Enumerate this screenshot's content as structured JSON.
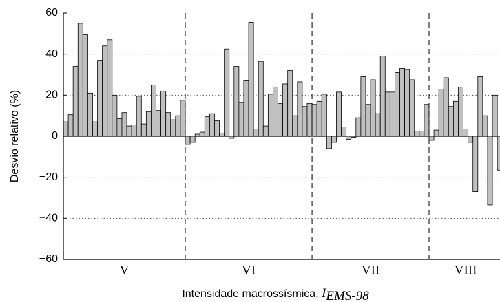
{
  "chart_data": {
    "type": "bar",
    "ylabel": "Desvio relativo (%)",
    "xlabel": "Intensidade macrossísmica, ",
    "xlabel_symbol": "I",
    "xlabel_subscript": "EMS-98",
    "ylim": [
      -60,
      60
    ],
    "yticks": [
      {
        "value": -60,
        "label": "−60"
      },
      {
        "value": -40,
        "label": "−40"
      },
      {
        "value": -20,
        "label": "−20"
      },
      0,
      20,
      40,
      60
    ],
    "grid": true,
    "color": "#c0c0c0",
    "groups": [
      {
        "label": "V",
        "values": [
          7,
          10.5,
          34,
          55,
          49.5,
          21,
          7,
          37,
          44,
          47,
          20,
          8.5,
          11.5,
          5,
          5.5,
          19.5,
          6,
          12,
          25,
          12.5,
          22,
          11.5,
          8,
          10,
          17.5
        ]
      },
      {
        "label": "VI",
        "values": [
          -4,
          -3,
          1,
          2,
          9.5,
          11,
          7.5,
          1.5,
          42.5,
          -1,
          34,
          16.5,
          27,
          55.5,
          3.5,
          36.5,
          5,
          20.5,
          24,
          16,
          25.5,
          32,
          10,
          26.5,
          14.5,
          16
        ]
      },
      {
        "label": "VII",
        "values": [
          15.5,
          17,
          20.5,
          -6,
          -3,
          21.5,
          4.5,
          -1.5,
          -0.5,
          9,
          29,
          15.5,
          27.5,
          11,
          39,
          21.5,
          21.5,
          31,
          33,
          32.5,
          27.5,
          2.5,
          2.5,
          15.5
        ]
      },
      {
        "label": "VIII",
        "values": [
          -2,
          3,
          23,
          28.5,
          14.5,
          17,
          24,
          3.5,
          -3,
          -27,
          29,
          10,
          -33.5,
          20,
          -16.5
        ]
      }
    ]
  }
}
